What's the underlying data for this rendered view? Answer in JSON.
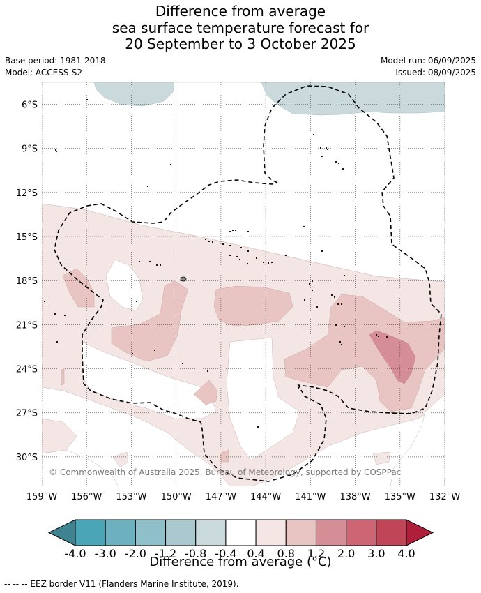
{
  "title": {
    "line1": "Difference from average",
    "line2": "sea surface temperature forecast for",
    "line3": "20 September to 3 October 2025"
  },
  "meta": {
    "base_period": "Base period: 1981-2018",
    "model": "Model: ACCESS-S2",
    "model_run": "Model run: 06/09/2025",
    "issued": "Issued: 08/09/2025"
  },
  "map": {
    "lon_range": [
      -159,
      -132
    ],
    "lat_range": [
      -32,
      -4.5
    ],
    "lat_ticks": [
      {
        "value": -6,
        "label": "6°S"
      },
      {
        "value": -9,
        "label": "9°S"
      },
      {
        "value": -12,
        "label": "12°S"
      },
      {
        "value": -15,
        "label": "15°S"
      },
      {
        "value": -18,
        "label": "18°S"
      },
      {
        "value": -21,
        "label": "21°S"
      },
      {
        "value": -24,
        "label": "24°S"
      },
      {
        "value": -27,
        "label": "27°S"
      },
      {
        "value": -30,
        "label": "30°S"
      }
    ],
    "lon_ticks": [
      {
        "value": -159,
        "label": "159°W"
      },
      {
        "value": -156,
        "label": "156°W"
      },
      {
        "value": -153,
        "label": "153°W"
      },
      {
        "value": -150,
        "label": "150°W"
      },
      {
        "value": -147,
        "label": "147°W"
      },
      {
        "value": -144,
        "label": "144°W"
      },
      {
        "value": -141,
        "label": "141°W"
      },
      {
        "value": -138,
        "label": "138°W"
      },
      {
        "value": -135,
        "label": "135°W"
      },
      {
        "value": -132,
        "label": "132°W"
      }
    ],
    "gridlines": true,
    "copyright": "© Commonwealth of Australia 2025, Bureau of Meteorology, supported by COSPPac"
  },
  "colorbar": {
    "labels": [
      "-4.0",
      "-3.0",
      "-2.0",
      "-1.2",
      "-0.8",
      "-0.4",
      "0.4",
      "0.8",
      "1.2",
      "2.0",
      "3.0",
      "4.0"
    ],
    "colors": [
      "#4aa5b6",
      "#6db1c0",
      "#8fbfc8",
      "#aac8cd",
      "#c9d9dc",
      "#ffffff",
      "#f4e6e4",
      "#e8c5c2",
      "#d68e96",
      "#cd6575",
      "#c04556"
    ],
    "low_extend_color": "#3e838f",
    "high_extend_color": "#b01f3a",
    "title": "Difference from average (°C)"
  },
  "legend_footer": "--  --  -- EEZ border V11 (Flanders Marine Institute, 2019).",
  "colors": {
    "cool_light": "#c9d9dc",
    "warm_1": "#f4e6e4",
    "warm_2": "#e8c5c2",
    "warm_3": "#d68e96"
  }
}
